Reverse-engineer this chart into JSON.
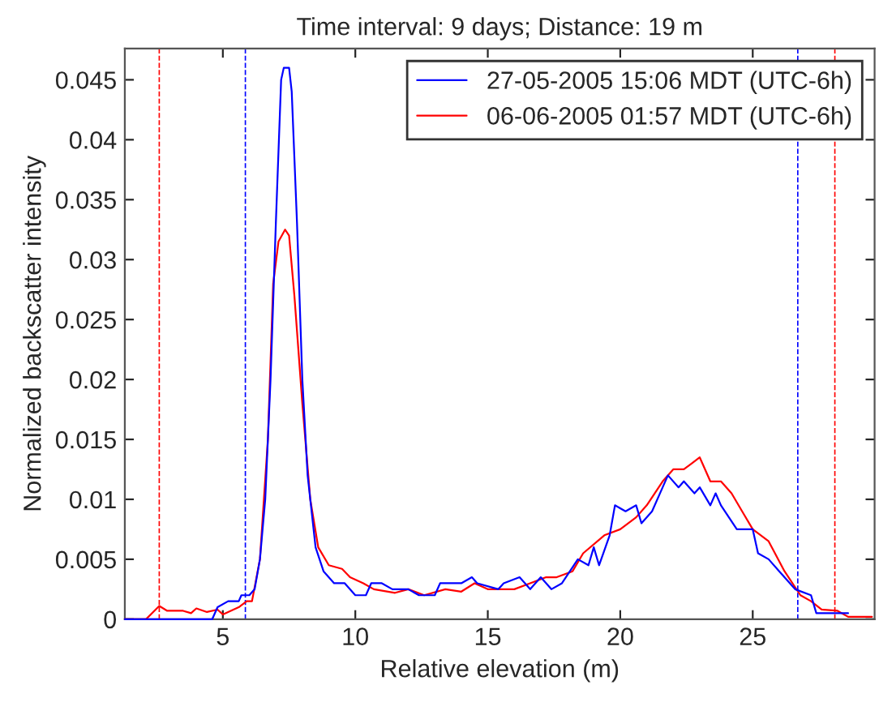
{
  "chart_data": {
    "type": "line",
    "title": "Time interval: 9 days; Distance: 19 m",
    "xlabel": "Relative elevation (m)",
    "ylabel": "Normalized backscatter intensity",
    "xlim": [
      1.3,
      29.6
    ],
    "ylim": [
      0,
      0.0476
    ],
    "xticks": [
      5,
      10,
      15,
      20,
      25
    ],
    "yticks": [
      0,
      0.005,
      0.01,
      0.015,
      0.02,
      0.025,
      0.03,
      0.035,
      0.04,
      0.045
    ],
    "grid": false,
    "legend": "top right",
    "line_style": "solid",
    "marker": "none",
    "series": [
      {
        "name": "27-05-2005 15:06 MDT (UTC-6h)",
        "color": "#0000ff",
        "x": [
          1.3,
          4.6,
          4.8,
          5.2,
          5.6,
          5.7,
          6.0,
          6.2,
          6.4,
          6.6,
          6.8,
          7.0,
          7.2,
          7.3,
          7.5,
          7.6,
          7.8,
          8.0,
          8.2,
          8.5,
          8.8,
          9.2,
          9.6,
          10.0,
          10.4,
          10.6,
          11.0,
          11.4,
          12.0,
          12.4,
          13.0,
          13.2,
          14.0,
          14.4,
          14.6,
          15.4,
          15.6,
          16.2,
          16.6,
          17.0,
          17.4,
          17.8,
          18.4,
          18.8,
          19.0,
          19.2,
          19.6,
          19.8,
          20.2,
          20.6,
          20.8,
          21.2,
          21.6,
          21.8,
          22.2,
          22.4,
          22.8,
          23.0,
          23.4,
          23.6,
          23.8,
          24.4,
          25.0,
          25.2,
          25.6,
          26.0,
          26.6,
          27.2,
          27.4,
          28.6
        ],
        "values": [
          0,
          0,
          0.001,
          0.0015,
          0.0015,
          0.002,
          0.002,
          0.0025,
          0.005,
          0.01,
          0.02,
          0.033,
          0.045,
          0.046,
          0.046,
          0.044,
          0.033,
          0.02,
          0.012,
          0.006,
          0.004,
          0.003,
          0.003,
          0.002,
          0.002,
          0.003,
          0.003,
          0.0025,
          0.0025,
          0.002,
          0.002,
          0.003,
          0.003,
          0.0035,
          0.003,
          0.0025,
          0.003,
          0.0035,
          0.0025,
          0.0035,
          0.0025,
          0.003,
          0.005,
          0.0045,
          0.006,
          0.0045,
          0.007,
          0.0095,
          0.009,
          0.0095,
          0.008,
          0.009,
          0.011,
          0.012,
          0.011,
          0.0115,
          0.0105,
          0.011,
          0.0095,
          0.0105,
          0.0095,
          0.0075,
          0.0075,
          0.0055,
          0.005,
          0.004,
          0.0025,
          0.002,
          0.0005,
          0.0005
        ]
      },
      {
        "name": "06-06-2005 01:57 MDT (UTC-6h)",
        "color": "#ff0000",
        "x": [
          1.3,
          2.1,
          2.6,
          2.9,
          3.5,
          3.8,
          4.0,
          4.4,
          4.8,
          5.0,
          5.6,
          5.9,
          6.1,
          6.4,
          6.7,
          6.9,
          7.1,
          7.35,
          7.5,
          7.7,
          8.0,
          8.3,
          8.6,
          9.0,
          9.5,
          9.8,
          10.3,
          10.7,
          11.5,
          12.0,
          12.6,
          13.4,
          14.0,
          14.5,
          15.0,
          16.0,
          16.6,
          17.2,
          17.6,
          18.2,
          18.6,
          19.4,
          20.0,
          20.6,
          21.0,
          21.6,
          22.0,
          22.4,
          22.7,
          23.0,
          23.4,
          23.8,
          24.2,
          24.6,
          25.0,
          25.6,
          26.2,
          26.8,
          27.2,
          27.6,
          28.2,
          28.6,
          29.5
        ],
        "values": [
          0,
          0,
          0.0011,
          0.0007,
          0.0007,
          0.0005,
          0.0009,
          0.0006,
          0.0008,
          0.0004,
          0.001,
          0.0015,
          0.0015,
          0.005,
          0.015,
          0.028,
          0.0315,
          0.0325,
          0.032,
          0.027,
          0.018,
          0.01,
          0.006,
          0.0045,
          0.0042,
          0.0035,
          0.003,
          0.0025,
          0.0022,
          0.0025,
          0.002,
          0.0025,
          0.0023,
          0.003,
          0.0025,
          0.0025,
          0.003,
          0.0035,
          0.0035,
          0.004,
          0.0055,
          0.007,
          0.0075,
          0.0085,
          0.0095,
          0.0115,
          0.0125,
          0.0125,
          0.013,
          0.0135,
          0.0115,
          0.0115,
          0.0105,
          0.009,
          0.0075,
          0.0065,
          0.004,
          0.002,
          0.0015,
          0.0008,
          0.0007,
          0.0002,
          0.0002
        ]
      }
    ],
    "ref_lines": [
      {
        "axis": "x",
        "value": 2.6,
        "color": "#ff0000",
        "line_style": "dashed"
      },
      {
        "axis": "x",
        "value": 5.85,
        "color": "#0000ff",
        "line_style": "dashed"
      },
      {
        "axis": "x",
        "value": 26.7,
        "color": "#0000ff",
        "line_style": "dashed"
      },
      {
        "axis": "x",
        "value": 28.1,
        "color": "#ff0000",
        "line_style": "dashed"
      }
    ]
  }
}
